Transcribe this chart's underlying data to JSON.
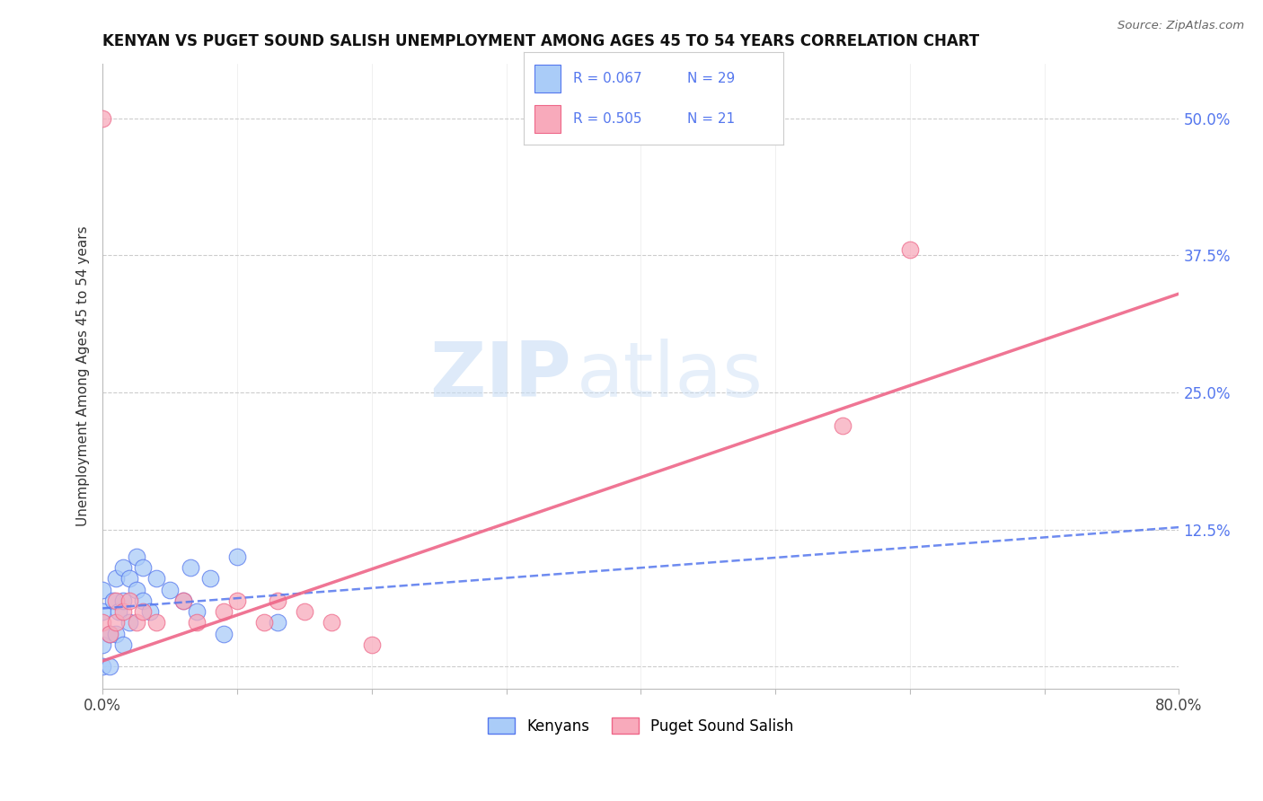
{
  "title": "KENYAN VS PUGET SOUND SALISH UNEMPLOYMENT AMONG AGES 45 TO 54 YEARS CORRELATION CHART",
  "source": "Source: ZipAtlas.com",
  "ylabel": "Unemployment Among Ages 45 to 54 years",
  "xlim": [
    0.0,
    0.8
  ],
  "ylim": [
    -0.02,
    0.55
  ],
  "xticks": [
    0.0,
    0.1,
    0.2,
    0.3,
    0.4,
    0.5,
    0.6,
    0.7,
    0.8
  ],
  "xticklabels": [
    "0.0%",
    "",
    "",
    "",
    "",
    "",
    "",
    "",
    "80.0%"
  ],
  "yticks": [
    0.0,
    0.125,
    0.25,
    0.375,
    0.5
  ],
  "yticklabels": [
    "",
    "12.5%",
    "25.0%",
    "37.5%",
    "50.0%"
  ],
  "watermark_zip": "ZIP",
  "watermark_atlas": "atlas",
  "blue_color": "#AACCF8",
  "pink_color": "#F8AABB",
  "blue_line_color": "#5577EE",
  "pink_line_color": "#EE6688",
  "blue_dark": "#4466CC",
  "pink_dark": "#DD4466",
  "grid_color": "#CCCCCC",
  "background_color": "#FFFFFF",
  "kenyan_x": [
    0.0,
    0.0,
    0.0,
    0.0,
    0.005,
    0.005,
    0.008,
    0.01,
    0.01,
    0.012,
    0.015,
    0.015,
    0.015,
    0.02,
    0.02,
    0.025,
    0.025,
    0.03,
    0.03,
    0.035,
    0.04,
    0.05,
    0.06,
    0.065,
    0.07,
    0.08,
    0.09,
    0.1,
    0.13
  ],
  "kenyan_y": [
    0.0,
    0.02,
    0.05,
    0.07,
    0.0,
    0.03,
    0.06,
    0.03,
    0.08,
    0.05,
    0.02,
    0.06,
    0.09,
    0.04,
    0.08,
    0.07,
    0.1,
    0.06,
    0.09,
    0.05,
    0.08,
    0.07,
    0.06,
    0.09,
    0.05,
    0.08,
    0.03,
    0.1,
    0.04
  ],
  "puget_x": [
    0.0,
    0.0,
    0.005,
    0.01,
    0.01,
    0.015,
    0.02,
    0.025,
    0.03,
    0.04,
    0.06,
    0.07,
    0.09,
    0.1,
    0.12,
    0.13,
    0.15,
    0.17,
    0.2,
    0.55,
    0.6
  ],
  "puget_y": [
    0.5,
    0.04,
    0.03,
    0.06,
    0.04,
    0.05,
    0.06,
    0.04,
    0.05,
    0.04,
    0.06,
    0.04,
    0.05,
    0.06,
    0.04,
    0.06,
    0.05,
    0.04,
    0.02,
    0.22,
    0.38
  ],
  "blue_trend_x": [
    0.0,
    0.8
  ],
  "blue_trend_y": [
    0.053,
    0.127
  ],
  "pink_trend_x": [
    0.0,
    0.8
  ],
  "pink_trend_y": [
    0.005,
    0.34
  ]
}
